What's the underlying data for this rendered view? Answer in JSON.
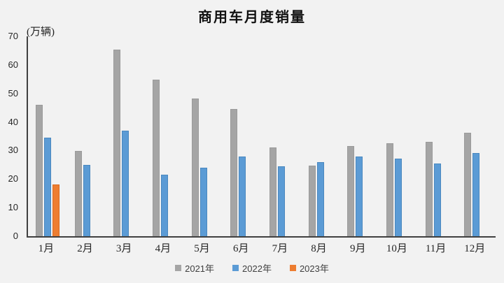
{
  "colors": {
    "background": "#f2f2f2",
    "axis": "#404040",
    "title_text": "#111111",
    "tick_text": "#262626",
    "legend_text": "#404040",
    "series_2021": "#a5a5a5",
    "series_2022": "#5b9bd5",
    "series_2023": "#ed7d31"
  },
  "chart_data": {
    "type": "bar",
    "title": "商用车月度销量",
    "ylabel": "(万辆)",
    "xlabel": "",
    "ylim": [
      0,
      70
    ],
    "yticks": [
      0,
      10,
      20,
      30,
      40,
      50,
      60,
      70
    ],
    "grid": false,
    "legend_position": "bottom",
    "categories": [
      "1月",
      "2月",
      "3月",
      "4月",
      "5月",
      "6月",
      "7月",
      "8月",
      "9月",
      "10月",
      "11月",
      "12月"
    ],
    "series": [
      {
        "name": "2021年",
        "color": "#a5a5a5",
        "border_color": "#9a9a9a",
        "values": [
          45.9,
          29.8,
          65.3,
          54.9,
          48.1,
          44.5,
          31.0,
          24.7,
          31.5,
          32.5,
          33.0,
          36.3
        ]
      },
      {
        "name": "2022年",
        "color": "#5b9bd5",
        "border_color": "#4a88bf",
        "values": [
          34.4,
          25.0,
          37.0,
          21.5,
          23.9,
          28.0,
          24.4,
          25.9,
          27.8,
          27.2,
          25.4,
          29.2
        ]
      },
      {
        "name": "2023年",
        "color": "#ed7d31",
        "border_color": "#d66a20",
        "values": [
          18.0,
          null,
          null,
          null,
          null,
          null,
          null,
          null,
          null,
          null,
          null,
          null
        ]
      }
    ]
  }
}
